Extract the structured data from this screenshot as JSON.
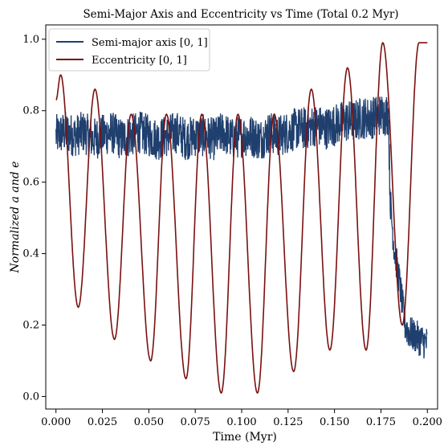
{
  "chart_data": {
    "type": "line",
    "title": "Semi-Major Axis and Eccentricity vs Time (Total 0.2 Myr)",
    "xlabel": "Time (Myr)",
    "ylabel": "Normalized a and e",
    "xlim": [
      -0.0055,
      0.2055
    ],
    "ylim": [
      -0.035,
      1.04
    ],
    "xticks": [
      0.0,
      0.025,
      0.05,
      0.075,
      0.1,
      0.125,
      0.15,
      0.175,
      0.2
    ],
    "xtick_labels": [
      "0.000",
      "0.025",
      "0.050",
      "0.075",
      "0.100",
      "0.125",
      "0.150",
      "0.175",
      "0.200"
    ],
    "yticks": [
      0.0,
      0.2,
      0.4,
      0.6,
      0.8,
      1.0
    ],
    "ytick_labels": [
      "0.0",
      "0.2",
      "0.4",
      "0.6",
      "0.8",
      "1.0"
    ],
    "grid": false,
    "legend_position": "top-left",
    "series": [
      {
        "name": "Semi-major axis [0, 1]",
        "color": "#1f3f6e",
        "x": [
          0.0,
          0.005,
          0.01,
          0.015,
          0.02,
          0.025,
          0.03,
          0.035,
          0.04,
          0.045,
          0.05,
          0.055,
          0.06,
          0.065,
          0.07,
          0.075,
          0.08,
          0.085,
          0.09,
          0.095,
          0.1,
          0.105,
          0.11,
          0.115,
          0.12,
          0.125,
          0.13,
          0.135,
          0.14,
          0.145,
          0.15,
          0.155,
          0.16,
          0.165,
          0.17,
          0.175,
          0.179,
          0.18,
          0.182,
          0.185,
          0.188,
          0.19,
          0.193,
          0.196,
          0.199
        ],
        "values": [
          0.73,
          0.74,
          0.73,
          0.74,
          0.72,
          0.73,
          0.74,
          0.72,
          0.73,
          0.74,
          0.73,
          0.72,
          0.73,
          0.74,
          0.72,
          0.73,
          0.73,
          0.72,
          0.74,
          0.72,
          0.73,
          0.73,
          0.72,
          0.74,
          0.73,
          0.74,
          0.75,
          0.75,
          0.76,
          0.75,
          0.76,
          0.77,
          0.77,
          0.78,
          0.78,
          0.79,
          0.79,
          0.55,
          0.42,
          0.32,
          0.2,
          0.18,
          0.17,
          0.16,
          0.15
        ],
        "fluctuation_amplitude": 0.06
      },
      {
        "name": "Eccentricity [0, 1]",
        "color": "#7a1010",
        "x": [
          0.0,
          0.0025,
          0.012,
          0.021,
          0.0315,
          0.0405,
          0.051,
          0.0595,
          0.07,
          0.0785,
          0.089,
          0.098,
          0.1085,
          0.1175,
          0.128,
          0.1375,
          0.1475,
          0.157,
          0.167,
          0.176,
          0.1865,
          0.1955,
          0.2
        ],
        "values": [
          0.83,
          0.9,
          0.25,
          0.86,
          0.16,
          0.79,
          0.1,
          0.79,
          0.05,
          0.79,
          0.01,
          0.79,
          0.01,
          0.79,
          0.07,
          0.86,
          0.13,
          0.92,
          0.13,
          0.99,
          0.2,
          0.99,
          0.99
        ]
      }
    ]
  }
}
